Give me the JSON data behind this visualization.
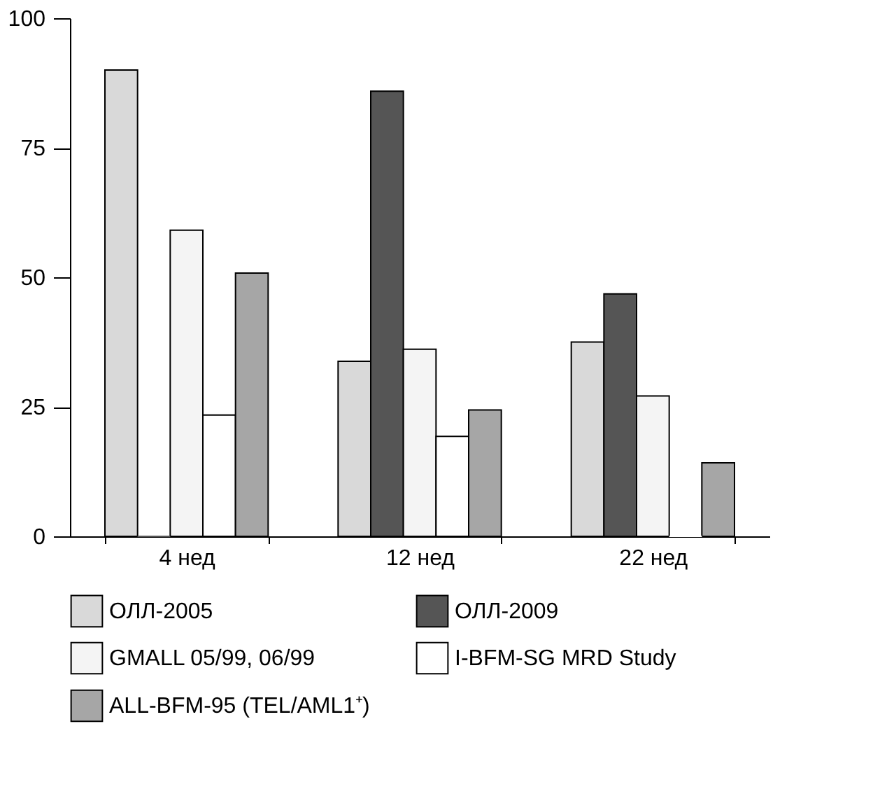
{
  "chart_data": {
    "type": "bar",
    "categories": [
      "4 нед",
      "12 нед",
      "22 нед"
    ],
    "series": [
      {
        "name": "ОЛЛ-2005",
        "color": "#d9d9d9",
        "values": [
          90,
          33.8,
          37.5
        ]
      },
      {
        "name": "ОЛЛ-2009",
        "color": "#555555",
        "values": [
          0,
          85.9,
          46.8
        ]
      },
      {
        "name": "GMALL 05/99, 06/99",
        "color": "#f4f4f4",
        "values": [
          59.1,
          36.1,
          27.1
        ]
      },
      {
        "name": "I-BFM-SG MRD Study",
        "color": "#ffffff",
        "values": [
          23.4,
          19.3,
          0
        ]
      },
      {
        "name": "ALL-BFM-95 (TEL/AML1⁺)",
        "color": "#a6a6a6",
        "values": [
          50.8,
          24.4,
          14.2
        ]
      }
    ],
    "ylim": [
      0,
      100
    ],
    "yticks": [
      0,
      25,
      50,
      75,
      100
    ],
    "grid": false,
    "legend": "bottom"
  }
}
